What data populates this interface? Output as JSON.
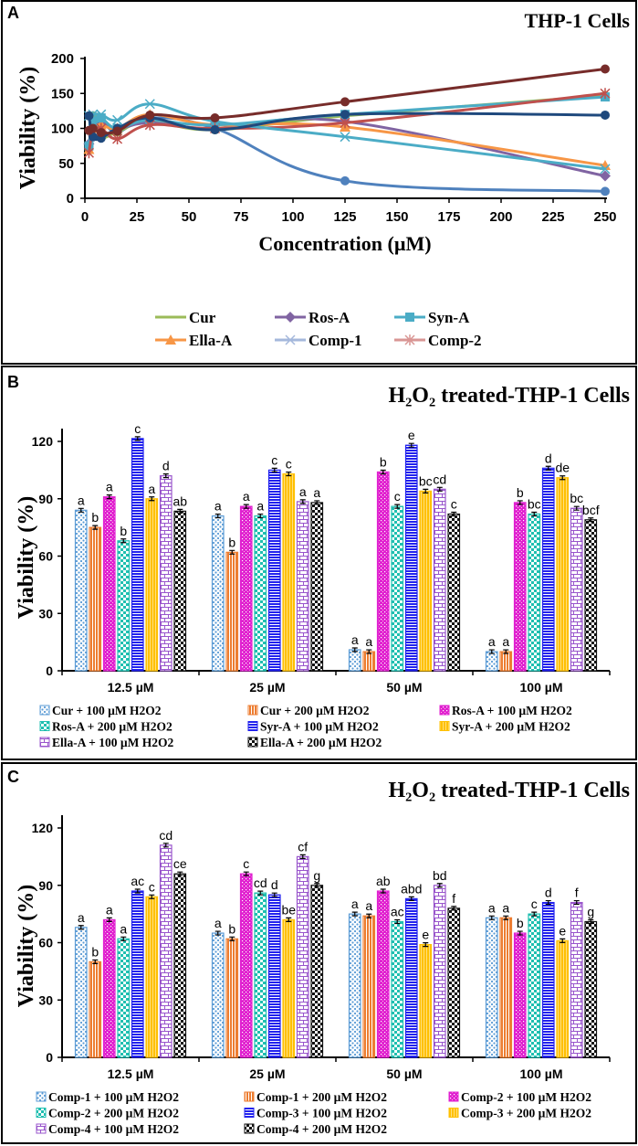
{
  "chart_data": [
    {
      "panel": "A",
      "type": "line",
      "title": "THP-1 Cells",
      "xlabel": "Concentration (µM)",
      "ylabel": "Viability (%)",
      "xlim": [
        0,
        250
      ],
      "ylim": [
        0,
        200
      ],
      "xticks": [
        "0",
        "25",
        "50",
        "75",
        "100",
        "125",
        "150",
        "175",
        "200",
        "225",
        "250"
      ],
      "yticks": [
        "0",
        "50",
        "100",
        "150",
        "200"
      ],
      "grid": false,
      "legend_position": "bottom",
      "x": [
        1.95,
        3.9,
        7.8,
        15.6,
        31.25,
        62.5,
        125,
        250
      ],
      "series": [
        {
          "name": "Cur",
          "color": "#9bbb59",
          "marker": "none",
          "values": [
            72,
            118,
            88,
            95,
            110,
            98,
            118,
            147
          ]
        },
        {
          "name": "Ros-A",
          "color": "#8064a2",
          "marker": "diamond",
          "values": [
            78,
            100,
            110,
            100,
            108,
            100,
            110,
            32
          ]
        },
        {
          "name": "Syn-A",
          "color": "#4bacc6",
          "marker": "square",
          "values": [
            75,
            110,
            115,
            100,
            112,
            105,
            120,
            145
          ]
        },
        {
          "name": "Ella-A",
          "color": "#f79646",
          "marker": "triangle",
          "values": [
            70,
            100,
            105,
            100,
            120,
            105,
            102,
            47
          ]
        },
        {
          "name": "Comp-1",
          "color": "#4bacc6",
          "legend_color": "#a5b8dc",
          "marker": "x",
          "values": [
            118,
            120,
            120,
            112,
            135,
            110,
            88,
            42
          ]
        },
        {
          "name": "Comp-2",
          "color": "#c0504d",
          "legend_color": "#d99694",
          "marker": "asterisk",
          "values": [
            65,
            95,
            100,
            85,
            105,
            100,
            108,
            150
          ]
        },
        {
          "color": "#4f81bd",
          "marker": "circle",
          "values": [
            75,
            110,
            112,
            95,
            115,
            100,
            25,
            10
          ]
        },
        {
          "color": "#1f497d",
          "marker": "circle",
          "values": [
            118,
            88,
            86,
            100,
            115,
            98,
            120,
            119
          ]
        },
        {
          "color": "#772c2a",
          "marker": "circle",
          "values": [
            97,
            100,
            94,
            96,
            119,
            115,
            138,
            185
          ]
        }
      ]
    },
    {
      "panel": "B",
      "type": "bar",
      "title": "H₂O₂ treated-THP-1 Cells",
      "ylabel": "Viability (%)",
      "ylim": [
        0,
        120
      ],
      "yticks": [
        "0",
        "30",
        "60",
        "90",
        "120"
      ],
      "grid": false,
      "legend_position": "bottom",
      "categories": [
        "12.5 µM",
        "25 µM",
        "50 µM",
        "100 µM"
      ],
      "series": [
        {
          "name": "Cur + 100  µM  H2O2",
          "color": "#5b9bd5",
          "pattern": "dots",
          "values": [
            84,
            81,
            11,
            10
          ],
          "letters": [
            "a",
            "a",
            "a",
            "a"
          ]
        },
        {
          "name": "Cur + 200  µM  H2O2",
          "color": "#ed7d31",
          "pattern": "vstripes",
          "values": [
            75,
            62,
            10,
            10
          ],
          "letters": [
            "b",
            "b",
            "a",
            "a"
          ]
        },
        {
          "name": "Ros-A + 100  µM  H2O2",
          "color": "#e020d0",
          "pattern": "pdots",
          "values": [
            91,
            86,
            104,
            88
          ],
          "letters": [
            "a",
            "a",
            "b",
            "b"
          ]
        },
        {
          "name": "Ros-A + 200  µM  H2O2",
          "color": "#1fbfb0",
          "pattern": "checker",
          "values": [
            68,
            81,
            86,
            82
          ],
          "letters": [
            "b",
            "a",
            "c",
            "bc"
          ]
        },
        {
          "name": "Syr-A + 100  µM  H2O2",
          "color": "#2222ee",
          "pattern": "hstripes",
          "values": [
            121.5,
            105,
            118,
            106
          ],
          "letters": [
            "c",
            "c",
            "e",
            "d"
          ]
        },
        {
          "name": "Syr-A + 200  µM  H2O2",
          "color": "#ffc000",
          "pattern": "ystripes",
          "values": [
            90,
            103,
            94,
            101
          ],
          "letters": [
            "a",
            "c",
            "bc",
            "de"
          ]
        },
        {
          "name": "Ella-A + 100  µM  H2O2",
          "color": "#9955cc",
          "pattern": "brick",
          "values": [
            102,
            88.5,
            95,
            85
          ],
          "letters": [
            "d",
            "a",
            "cd",
            "bc"
          ]
        },
        {
          "name": "Ella-A + 200  µM  H2O2",
          "color": "#111111",
          "pattern": "bchecker",
          "values": [
            83.5,
            88,
            82,
            79
          ],
          "letters": [
            "ab",
            "a",
            "c",
            "bcf"
          ]
        }
      ]
    },
    {
      "panel": "C",
      "type": "bar",
      "title": "H₂O₂ treated-THP-1 Cells",
      "ylabel": "Viability (%)",
      "ylim": [
        0,
        120
      ],
      "yticks": [
        "0",
        "30",
        "60",
        "90",
        "120"
      ],
      "grid": false,
      "legend_position": "bottom",
      "categories": [
        "12.5 µM",
        "25 µM",
        "50 µM",
        "100 µM"
      ],
      "series": [
        {
          "name": "Comp-1 + 100  µM  H2O2",
          "color": "#5b9bd5",
          "pattern": "dots",
          "values": [
            68,
            65,
            75,
            73
          ],
          "letters": [
            "a",
            "a",
            "a",
            "a"
          ]
        },
        {
          "name": "Comp-1 + 200  µM  H2O2",
          "color": "#ed7d31",
          "pattern": "vstripes",
          "values": [
            50,
            62,
            74,
            73
          ],
          "letters": [
            "b",
            "b",
            "a",
            "a"
          ]
        },
        {
          "name": "Comp-2 + 100  µM  H2O2",
          "color": "#e020d0",
          "pattern": "pdots",
          "values": [
            72,
            96,
            87,
            65
          ],
          "letters": [
            "a",
            "c",
            "ab",
            "b"
          ]
        },
        {
          "name": "Comp-2 + 200  µM  H2O2",
          "color": "#1fbfb0",
          "pattern": "checker",
          "values": [
            62,
            86,
            71,
            75
          ],
          "letters": [
            "a",
            "cd",
            "ac",
            "c"
          ]
        },
        {
          "name": "Comp-3 + 100  µM  H2O2",
          "color": "#2222ee",
          "pattern": "hstripes",
          "values": [
            87,
            85,
            83,
            81
          ],
          "letters": [
            "ac",
            "d",
            "abd",
            "d"
          ]
        },
        {
          "name": "Comp-3 + 200  µM  H2O2",
          "color": "#ffc000",
          "pattern": "ystripes",
          "values": [
            84,
            72,
            59,
            61
          ],
          "letters": [
            "c",
            "be",
            "e",
            "e"
          ]
        },
        {
          "name": "Comp-4 + 100  µM  H2O2",
          "color": "#9955cc",
          "pattern": "brick",
          "values": [
            111,
            105,
            90,
            81
          ],
          "letters": [
            "cd",
            "cf",
            "bd",
            "f"
          ]
        },
        {
          "name": "Comp-4 + 200  µM  H2O2",
          "color": "#111111",
          "pattern": "bchecker",
          "values": [
            96,
            90,
            78,
            71
          ],
          "letters": [
            "ce",
            "g",
            "f",
            "g"
          ]
        }
      ]
    }
  ]
}
